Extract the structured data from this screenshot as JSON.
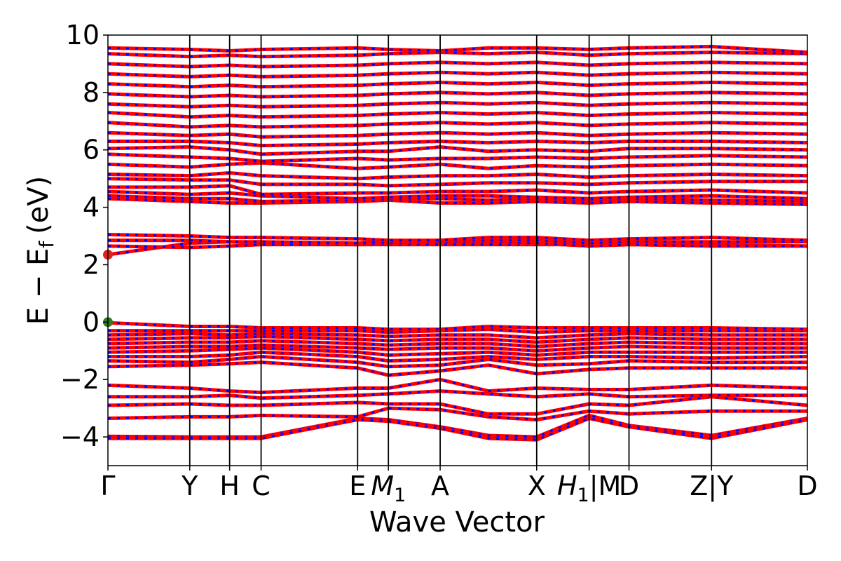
{
  "chart_data": {
    "type": "line",
    "title": "",
    "xlabel": "Wave Vector",
    "ylabel": "E − E",
    "ylabel_sub": "f",
    "ylabel_unit": "(eV)",
    "ylim": [
      -5,
      10
    ],
    "xlim": [
      0,
      1
    ],
    "yticks": [
      -4,
      -2,
      0,
      2,
      4,
      6,
      8,
      10
    ],
    "ytick_labels": [
      "−4",
      "−2",
      "0",
      "2",
      "4",
      "6",
      "8",
      "10"
    ],
    "kpoints": [
      {
        "x": 0.0,
        "label": "Γ"
      },
      {
        "x": 0.117,
        "label": "Y"
      },
      {
        "x": 0.174,
        "label": "H"
      },
      {
        "x": 0.219,
        "label": "C"
      },
      {
        "x": 0.357,
        "label": "E"
      },
      {
        "x": 0.401,
        "label": "M",
        "sub": "1"
      },
      {
        "x": 0.475,
        "label": "A"
      },
      {
        "x": 0.613,
        "label": "X"
      },
      {
        "x": 0.688,
        "label": "H",
        "sub": "1",
        "suffix": "|M"
      },
      {
        "x": 0.745,
        "label": "D"
      },
      {
        "x": 0.863,
        "label": "Z|Y"
      },
      {
        "x": 1.0,
        "label": "D"
      }
    ],
    "markers": [
      {
        "name": "CBM",
        "x": 0.0,
        "y": 2.35,
        "color": "#e0201a"
      },
      {
        "name": "VBM",
        "x": 0.0,
        "y": 0.0,
        "color": "#2e7d1e"
      }
    ],
    "bands": [
      {
        "group": "valence",
        "y": [
          -3.98,
          -4.0,
          -4.0,
          -4.0,
          -3.35,
          -3.4,
          -3.65,
          -3.95,
          -4.0,
          -3.25,
          -3.6,
          -3.95,
          -3.35
        ]
      },
      {
        "group": "valence",
        "y": [
          -4.05,
          -4.05,
          -4.05,
          -4.05,
          -3.4,
          -3.45,
          -3.7,
          -4.05,
          -4.1,
          -3.35,
          -3.65,
          -4.05,
          -3.4
        ]
      },
      {
        "group": "valence",
        "y": [
          -3.35,
          -3.3,
          -3.3,
          -3.25,
          -3.3,
          -3.0,
          -3.05,
          -3.3,
          -3.4,
          -3.1,
          -3.2,
          -3.1,
          -3.1
        ]
      },
      {
        "group": "valence",
        "y": [
          -2.9,
          -2.85,
          -2.9,
          -2.9,
          -2.8,
          -2.85,
          -2.85,
          -3.2,
          -3.2,
          -2.85,
          -2.9,
          -2.6,
          -2.9
        ]
      },
      {
        "group": "valence",
        "y": [
          -2.6,
          -2.6,
          -2.55,
          -2.65,
          -2.55,
          -2.5,
          -2.4,
          -2.5,
          -2.6,
          -2.5,
          -2.6,
          -2.55,
          -2.55
        ]
      },
      {
        "group": "valence",
        "y": [
          -2.2,
          -2.3,
          -2.4,
          -2.45,
          -2.3,
          -2.3,
          -2.0,
          -2.4,
          -2.3,
          -2.35,
          -2.35,
          -2.2,
          -2.3
        ]
      },
      {
        "group": "valence",
        "y": [
          -1.55,
          -1.5,
          -1.45,
          -1.4,
          -1.6,
          -1.85,
          -1.7,
          -1.5,
          -1.8,
          -1.65,
          -1.6,
          -1.6,
          -1.6
        ]
      },
      {
        "group": "valence",
        "y": [
          -1.35,
          -1.4,
          -1.3,
          -1.2,
          -1.4,
          -1.55,
          -1.5,
          -1.3,
          -1.5,
          -1.45,
          -1.35,
          -1.4,
          -1.4
        ]
      },
      {
        "group": "valence",
        "y": [
          -1.2,
          -1.2,
          -1.15,
          -1.05,
          -1.2,
          -1.35,
          -1.3,
          -1.2,
          -1.3,
          -1.2,
          -1.2,
          -1.25,
          -1.2
        ]
      },
      {
        "group": "valence",
        "y": [
          -1.05,
          -1.0,
          -0.95,
          -0.9,
          -1.05,
          -1.15,
          -1.1,
          -1.05,
          -1.15,
          -1.05,
          -1.05,
          -1.05,
          -1.05
        ]
      },
      {
        "group": "valence",
        "y": [
          -0.9,
          -0.85,
          -0.85,
          -0.8,
          -0.9,
          -0.95,
          -0.9,
          -0.9,
          -1.0,
          -0.9,
          -0.85,
          -0.9,
          -0.9
        ]
      },
      {
        "group": "valence",
        "y": [
          -0.75,
          -0.7,
          -0.7,
          -0.65,
          -0.75,
          -0.8,
          -0.75,
          -0.75,
          -0.85,
          -0.75,
          -0.7,
          -0.75,
          -0.75
        ]
      },
      {
        "group": "valence",
        "y": [
          -0.6,
          -0.55,
          -0.55,
          -0.5,
          -0.6,
          -0.65,
          -0.6,
          -0.6,
          -0.7,
          -0.6,
          -0.55,
          -0.6,
          -0.6
        ]
      },
      {
        "group": "valence",
        "y": [
          -0.45,
          -0.4,
          -0.45,
          -0.4,
          -0.45,
          -0.5,
          -0.45,
          -0.45,
          -0.55,
          -0.45,
          -0.4,
          -0.45,
          -0.45
        ]
      },
      {
        "group": "valence",
        "y": [
          -0.3,
          -0.3,
          -0.3,
          -0.3,
          -0.3,
          -0.35,
          -0.3,
          -0.25,
          -0.35,
          -0.3,
          -0.3,
          -0.3,
          -0.3
        ]
      },
      {
        "group": "valence",
        "y": [
          -0.02,
          -0.15,
          -0.15,
          -0.2,
          -0.2,
          -0.25,
          -0.25,
          -0.15,
          -0.2,
          -0.2,
          -0.2,
          -0.2,
          -0.25
        ]
      },
      {
        "group": "conduction",
        "y": [
          2.35,
          2.75,
          2.8,
          2.75,
          2.7,
          2.7,
          2.7,
          2.7,
          2.7,
          2.7,
          2.7,
          2.7,
          2.65
        ]
      },
      {
        "group": "conduction",
        "y": [
          2.65,
          2.6,
          2.65,
          2.7,
          2.7,
          2.75,
          2.8,
          2.8,
          2.75,
          2.65,
          2.7,
          2.65,
          2.65
        ]
      },
      {
        "group": "conduction",
        "y": [
          2.85,
          2.85,
          2.8,
          2.8,
          2.75,
          2.8,
          2.85,
          2.85,
          2.85,
          2.75,
          2.8,
          2.8,
          2.8
        ]
      },
      {
        "group": "conduction",
        "y": [
          3.05,
          3.0,
          2.95,
          2.95,
          2.9,
          2.85,
          2.85,
          2.95,
          2.95,
          2.85,
          2.9,
          2.95,
          2.85
        ]
      },
      {
        "group": "conduction",
        "y": [
          4.3,
          4.2,
          4.15,
          4.15,
          4.2,
          4.25,
          4.15,
          4.15,
          4.2,
          4.15,
          4.2,
          4.15,
          4.1
        ]
      },
      {
        "group": "conduction",
        "y": [
          4.4,
          4.3,
          4.3,
          4.2,
          4.25,
          4.3,
          4.3,
          4.25,
          4.3,
          4.25,
          4.3,
          4.25,
          4.2
        ]
      },
      {
        "group": "conduction",
        "y": [
          4.55,
          4.45,
          4.5,
          4.4,
          4.3,
          4.35,
          4.4,
          4.4,
          4.35,
          4.3,
          4.35,
          4.4,
          4.3
        ]
      },
      {
        "group": "conduction",
        "y": [
          4.7,
          4.7,
          4.75,
          4.45,
          4.5,
          4.5,
          4.55,
          4.55,
          4.6,
          4.5,
          4.55,
          4.6,
          4.5
        ]
      },
      {
        "group": "conduction",
        "y": [
          5.0,
          4.95,
          4.95,
          4.8,
          4.8,
          4.75,
          4.8,
          4.85,
          4.85,
          4.8,
          4.85,
          4.9,
          4.9
        ]
      },
      {
        "group": "conduction",
        "y": [
          5.15,
          5.1,
          5.2,
          5.1,
          5.0,
          5.05,
          5.1,
          5.1,
          5.15,
          5.05,
          5.1,
          5.15,
          5.1
        ]
      },
      {
        "group": "conduction",
        "y": [
          5.5,
          5.4,
          5.5,
          5.55,
          5.35,
          5.4,
          5.5,
          5.35,
          5.45,
          5.4,
          5.45,
          5.5,
          5.45
        ]
      },
      {
        "group": "conduction",
        "y": [
          5.85,
          5.75,
          5.7,
          5.6,
          5.7,
          5.65,
          5.7,
          5.7,
          5.75,
          5.7,
          5.75,
          5.8,
          5.75
        ]
      },
      {
        "group": "conduction",
        "y": [
          6.05,
          6.1,
          6.0,
          5.85,
          5.95,
          5.95,
          6.1,
          5.95,
          6.0,
          5.95,
          6.05,
          6.05,
          6.0
        ]
      },
      {
        "group": "conduction",
        "y": [
          6.3,
          6.3,
          6.25,
          6.15,
          6.2,
          6.25,
          6.3,
          6.25,
          6.3,
          6.25,
          6.3,
          6.3,
          6.25
        ]
      },
      {
        "group": "conduction",
        "y": [
          6.6,
          6.5,
          6.55,
          6.45,
          6.5,
          6.55,
          6.6,
          6.55,
          6.6,
          6.5,
          6.55,
          6.6,
          6.55
        ]
      },
      {
        "group": "conduction",
        "y": [
          6.95,
          6.8,
          6.85,
          6.8,
          6.85,
          6.9,
          6.95,
          6.9,
          6.95,
          6.85,
          6.9,
          6.95,
          6.9
        ]
      },
      {
        "group": "conduction",
        "y": [
          7.3,
          7.15,
          7.2,
          7.15,
          7.2,
          7.25,
          7.3,
          7.25,
          7.3,
          7.2,
          7.25,
          7.3,
          7.25
        ]
      },
      {
        "group": "conduction",
        "y": [
          7.6,
          7.5,
          7.55,
          7.5,
          7.55,
          7.6,
          7.65,
          7.6,
          7.65,
          7.55,
          7.6,
          7.65,
          7.6
        ]
      },
      {
        "group": "conduction",
        "y": [
          7.95,
          7.85,
          7.9,
          7.85,
          7.9,
          7.95,
          8.0,
          7.95,
          8.0,
          7.9,
          7.95,
          8.0,
          7.95
        ]
      },
      {
        "group": "conduction",
        "y": [
          8.3,
          8.2,
          8.25,
          8.2,
          8.25,
          8.3,
          8.35,
          8.3,
          8.35,
          8.25,
          8.3,
          8.35,
          8.3
        ]
      },
      {
        "group": "conduction",
        "y": [
          8.65,
          8.55,
          8.6,
          8.55,
          8.6,
          8.65,
          8.7,
          8.65,
          8.7,
          8.6,
          8.65,
          8.7,
          8.65
        ]
      },
      {
        "group": "conduction",
        "y": [
          9.0,
          8.9,
          8.95,
          8.9,
          8.95,
          9.0,
          9.05,
          9.0,
          9.05,
          8.95,
          9.0,
          9.05,
          9.0
        ]
      },
      {
        "group": "conduction",
        "y": [
          9.35,
          9.25,
          9.3,
          9.25,
          9.3,
          9.35,
          9.4,
          9.35,
          9.4,
          9.3,
          9.35,
          9.4,
          9.35
        ]
      },
      {
        "group": "conduction",
        "y": [
          9.55,
          9.5,
          9.45,
          9.5,
          9.55,
          9.5,
          9.45,
          9.55,
          9.55,
          9.5,
          9.55,
          9.6,
          9.4
        ]
      }
    ],
    "band_x": [
      0.0,
      0.117,
      0.174,
      0.219,
      0.357,
      0.401,
      0.475,
      0.544,
      0.613,
      0.688,
      0.745,
      0.863,
      1.0
    ],
    "colors": {
      "band_primary": "#ff0000",
      "band_secondary": "#0000ff",
      "marker_cbm": "#e0201a",
      "marker_vbm": "#2e7d1e"
    },
    "grid": false,
    "legend": "none"
  }
}
